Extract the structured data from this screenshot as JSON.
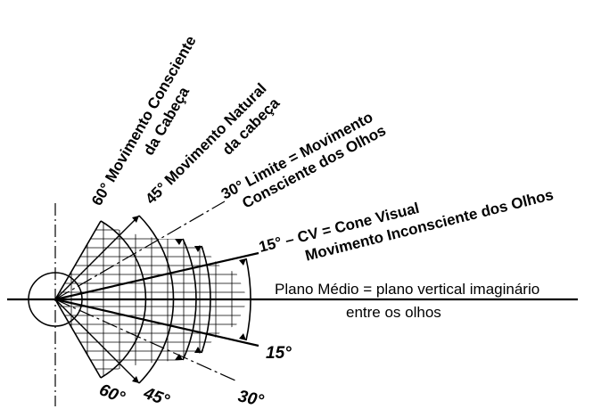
{
  "labels": {
    "sixty_line1": "60° Movimento Consciente",
    "sixty_line2": "da Cabeça",
    "fortyfive_line1": "45° Movimento Natural",
    "fortyfive_line2": "da cabeça",
    "thirty_line1": "30° Limite = Movimento",
    "thirty_line2": "Consciente dos Olhos",
    "fifteen_line1": "15°  –  CV = Cone Visual",
    "fifteen_line2": "Movimento Inconsciente dos Olhos",
    "plano_line1": "Plano Médio = plano vertical imaginário",
    "plano_line2": "entre os olhos",
    "angle_15_lower": "15°",
    "angle_30_lower": "30°",
    "angle_45_lower": "45°",
    "angle_60_lower": "60°"
  }
}
